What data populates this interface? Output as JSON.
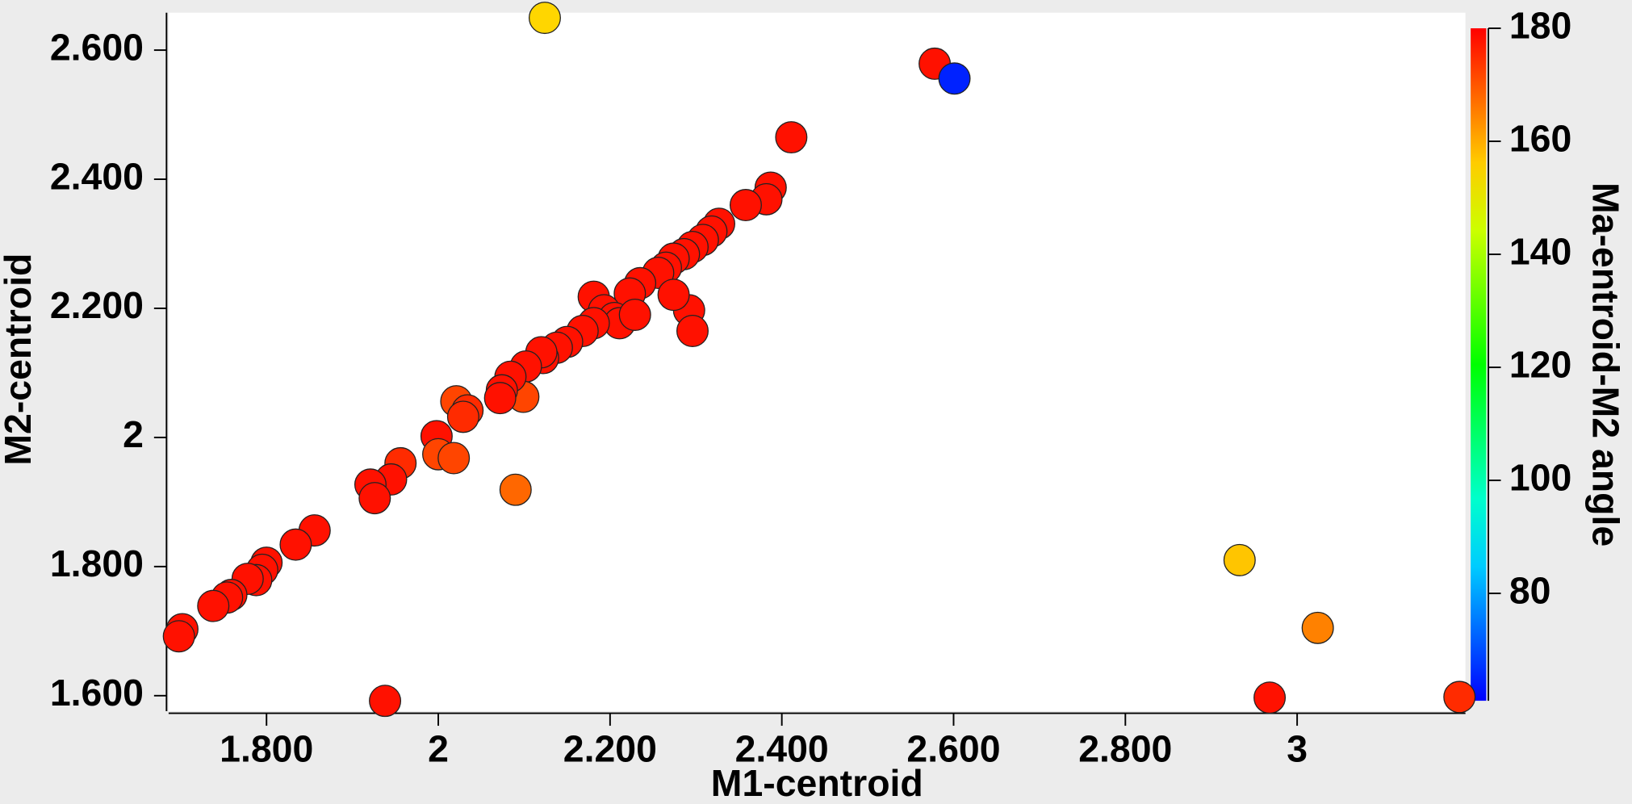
{
  "chart_data": {
    "type": "scatter",
    "xlabel": "M1-centroid",
    "ylabel": "M2-centroid",
    "colorbar_label": "Ma-entroid-M2 angle",
    "colormap": "rainbow",
    "xlim": [
      1.686,
      3.196
    ],
    "ylim": [
      1.576,
      2.658
    ],
    "zlim": [
      61,
      180
    ],
    "xticks": [
      {
        "value": 1.8,
        "label": "1.800"
      },
      2,
      {
        "value": 2.2,
        "label": "2.200"
      },
      {
        "value": 2.4,
        "label": "2.400"
      },
      {
        "value": 2.6,
        "label": "2.600"
      },
      {
        "value": 2.8,
        "label": "2.800"
      },
      3
    ],
    "yticks": [
      {
        "value": 1.6,
        "label": "1.600"
      },
      {
        "value": 1.8,
        "label": "1.800"
      },
      2,
      {
        "value": 2.2,
        "label": "2.200"
      },
      {
        "value": 2.4,
        "label": "2.400"
      },
      {
        "value": 2.6,
        "label": "2.600"
      }
    ],
    "zticks": [
      80,
      100,
      120,
      140,
      160,
      180
    ],
    "series": [
      {
        "x": [
          2.124,
          2.578,
          2.601,
          2.411,
          2.387,
          2.382,
          2.358,
          2.327,
          2.318,
          2.308,
          2.296,
          2.286,
          2.274,
          2.265,
          2.256,
          2.235,
          2.223,
          2.292,
          2.296,
          2.274,
          2.181,
          2.193,
          2.205,
          2.211,
          2.229,
          2.181,
          2.168,
          2.15,
          2.138,
          2.122,
          2.12,
          2.102,
          2.099,
          2.084,
          2.074,
          2.072,
          2.021,
          2.034,
          2.029,
          1.998,
          2.0,
          2.018,
          1.956,
          1.945,
          1.921,
          1.926,
          2.09,
          1.856,
          1.834,
          1.8,
          1.795,
          1.788,
          1.778,
          1.759,
          1.754,
          1.738,
          1.702,
          1.698,
          1.938,
          2.933,
          3.024,
          2.968,
          3.189
        ],
        "y": [
          2.65,
          2.579,
          2.556,
          2.465,
          2.387,
          2.369,
          2.36,
          2.331,
          2.319,
          2.306,
          2.295,
          2.284,
          2.277,
          2.263,
          2.255,
          2.239,
          2.223,
          2.197,
          2.165,
          2.221,
          2.218,
          2.197,
          2.185,
          2.177,
          2.19,
          2.177,
          2.165,
          2.148,
          2.139,
          2.123,
          2.132,
          2.11,
          2.063,
          2.094,
          2.073,
          2.061,
          2.056,
          2.042,
          2.032,
          2.002,
          1.974,
          1.968,
          1.96,
          1.935,
          1.927,
          1.906,
          1.919,
          1.856,
          1.834,
          1.806,
          1.795,
          1.779,
          1.781,
          1.756,
          1.752,
          1.739,
          1.703,
          1.692,
          1.592,
          1.81,
          1.705,
          1.597,
          1.598
        ],
        "z": [
          155,
          178,
          65,
          178,
          178,
          178,
          178,
          178,
          178,
          178,
          178,
          178,
          178,
          178,
          178,
          178,
          178,
          178,
          178,
          178,
          178,
          178,
          178,
          178,
          178,
          178,
          178,
          178,
          178,
          178,
          178,
          178,
          172,
          178,
          178,
          178,
          172,
          175,
          175,
          178,
          172,
          172,
          175,
          178,
          178,
          178,
          168,
          178,
          178,
          178,
          178,
          178,
          178,
          178,
          178,
          178,
          178,
          178,
          178,
          157,
          165,
          178,
          175
        ]
      }
    ]
  }
}
